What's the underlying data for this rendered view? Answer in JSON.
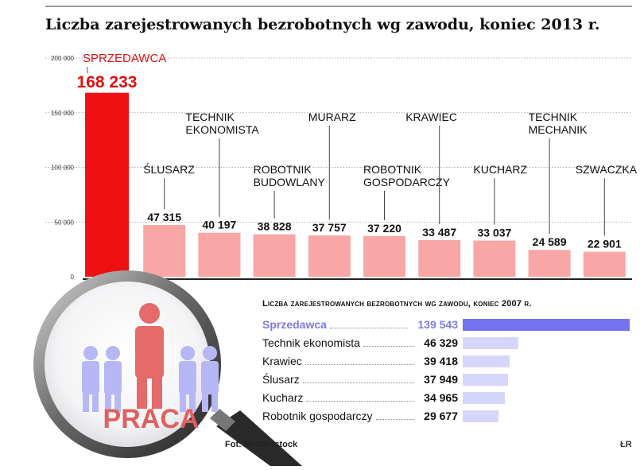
{
  "chart_data": [
    {
      "type": "bar",
      "title": "Liczba zarejestrowanych bezrobotnych wg zawodu, koniec 2013 r.",
      "categories": [
        [
          "SPRZEDAWCA"
        ],
        [
          "ŚLUSARZ"
        ],
        [
          "TECHNIK",
          "EKONOMISTA"
        ],
        [
          "ROBOTNIK",
          "BUDOWLANY"
        ],
        [
          "MURARZ"
        ],
        [
          "ROBOTNIK",
          "GOSPODARCZY"
        ],
        [
          "KRAWIEC"
        ],
        [
          "KUCHARZ"
        ],
        [
          "TECHNIK",
          "MECHANIK"
        ],
        [
          "SZWACZKA"
        ]
      ],
      "values": [
        168233,
        47315,
        40197,
        38828,
        37757,
        37220,
        33487,
        33037,
        24589,
        22901
      ],
      "value_labels": [
        "168 233",
        "47 315",
        "40 197",
        "38 828",
        "37 757",
        "37 220",
        "33 487",
        "33 037",
        "24 589",
        "22 901"
      ],
      "ylim": [
        0,
        200000
      ],
      "yticks": [
        0,
        50000,
        100000,
        150000,
        200000
      ],
      "ytick_labels": [
        "0",
        "50 000",
        "100 000",
        "150 000",
        "200 000"
      ],
      "highlight_index": 0,
      "colors": {
        "highlight": "#ee1111",
        "bar": "#f8a6a6",
        "highlight_label": "#e01010"
      }
    },
    {
      "type": "bar",
      "orientation": "horizontal",
      "title": "Liczba zarejestrowanych bezrobotnych wg zawodu, koniec 2007 r.",
      "categories": [
        "Sprzedawca",
        "Technik ekonomista",
        "Krawiec",
        "Ślusarz",
        "Kucharz",
        "Robotnik gospodarczy"
      ],
      "values": [
        139543,
        46329,
        39418,
        37949,
        34965,
        29677
      ],
      "value_labels": [
        "139 543",
        "46 329",
        "39 418",
        "37 949",
        "34 965",
        "29 677"
      ],
      "highlight_index": 0,
      "colors": {
        "highlight": "#7373ee",
        "bar": "#d6d6fb",
        "highlight_label": "#7b7be8"
      }
    }
  ],
  "magnifier": {
    "text": "PRACA"
  },
  "source": "Fot: Shutterstock",
  "logo": "ŁR"
}
